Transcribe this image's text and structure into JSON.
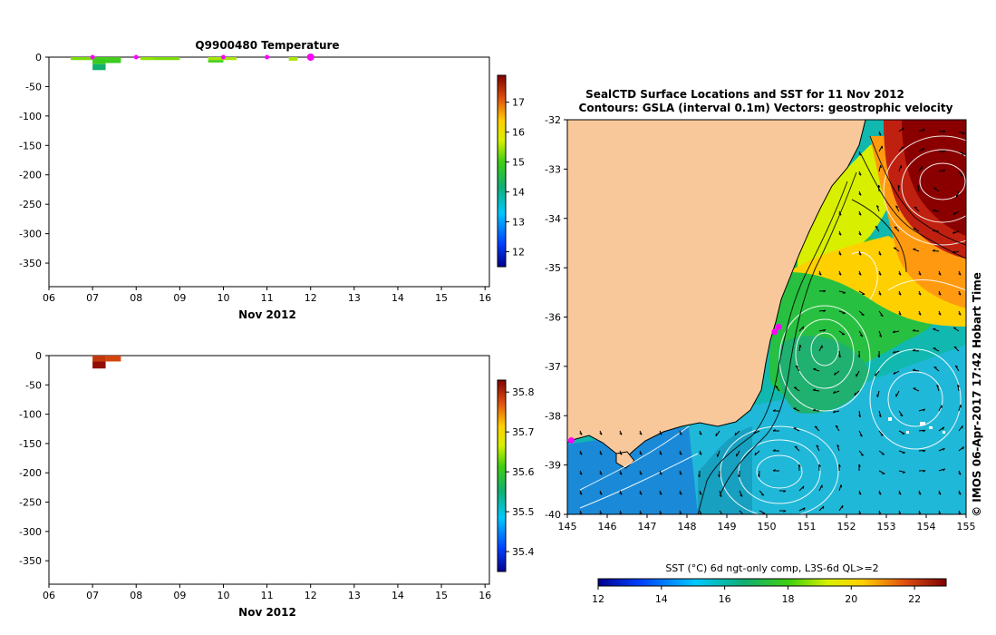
{
  "chart_data": [
    {
      "type": "heatmap",
      "title": "Q9900480  Temperature",
      "xlabel": "Nov 2012",
      "ylabel": "",
      "x_ticks": [
        "06",
        "07",
        "08",
        "09",
        "10",
        "11",
        "12",
        "13",
        "14",
        "15",
        "16"
      ],
      "y_ticks": [
        0,
        -50,
        -100,
        -150,
        -200,
        -250,
        -300,
        -350
      ],
      "xlim": [
        6,
        16.1
      ],
      "ylim": [
        -390,
        0
      ],
      "colorbar": {
        "ticks": [
          12,
          13,
          14,
          15,
          16,
          17
        ],
        "range": [
          11.5,
          17.9
        ]
      },
      "cells": [
        {
          "x0": 6.5,
          "x1": 7.0,
          "y0": 0,
          "y1": -5,
          "value": 15.3
        },
        {
          "x0": 7.0,
          "x1": 7.3,
          "y0": 0,
          "y1": -3,
          "value": 15.0
        },
        {
          "x0": 7.0,
          "x1": 7.3,
          "y0": -3,
          "y1": -12,
          "value": 14.9
        },
        {
          "x0": 7.0,
          "x1": 7.3,
          "y0": -12,
          "y1": -22,
          "value": 14.2
        },
        {
          "x0": 7.3,
          "x1": 7.65,
          "y0": 0,
          "y1": -4,
          "value": 15.0
        },
        {
          "x0": 7.3,
          "x1": 7.65,
          "y0": -4,
          "y1": -10,
          "value": 14.9
        },
        {
          "x0": 8.1,
          "x1": 8.4,
          "y0": 0,
          "y1": -5,
          "value": 15.4
        },
        {
          "x0": 8.4,
          "x1": 9.0,
          "y0": 0,
          "y1": -5,
          "value": 15.3
        },
        {
          "x0": 9.65,
          "x1": 10.3,
          "y0": 0,
          "y1": -5,
          "value": 15.5
        },
        {
          "x0": 9.65,
          "x1": 10.0,
          "y0": -5,
          "y1": -9,
          "value": 15.0
        },
        {
          "x0": 11.5,
          "x1": 11.7,
          "y0": 0,
          "y1": -6,
          "value": 15.5
        }
      ],
      "surface_markers": [
        7.0,
        8.0,
        10.0,
        11.0,
        12.0
      ]
    },
    {
      "type": "heatmap",
      "title": "",
      "xlabel": "Nov 2012",
      "ylabel": "",
      "x_ticks": [
        "06",
        "07",
        "08",
        "09",
        "10",
        "11",
        "12",
        "13",
        "14",
        "15",
        "16"
      ],
      "y_ticks": [
        0,
        -50,
        -100,
        -150,
        -200,
        -250,
        -300,
        -350
      ],
      "xlim": [
        6,
        16.1
      ],
      "ylim": [
        -390,
        0
      ],
      "colorbar": {
        "ticks": [
          35.4,
          35.5,
          35.6,
          35.7,
          35.8
        ],
        "range": [
          35.35,
          35.83
        ]
      },
      "cells": [
        {
          "x0": 7.0,
          "x1": 7.3,
          "y0": 0,
          "y1": -10,
          "value": 35.79
        },
        {
          "x0": 7.0,
          "x1": 7.3,
          "y0": -10,
          "y1": -22,
          "value": 35.82
        },
        {
          "x0": 7.3,
          "x1": 7.65,
          "y0": 0,
          "y1": -10,
          "value": 35.78
        }
      ]
    },
    {
      "type": "heatmap",
      "title": "SealCTD Surface Locations and SST for 11 Nov 2012",
      "subtitle": "Contours: GSLA (interval 0.1m) Vectors: geostrophic velocity",
      "side_label": "© IMOS 06-Apr-2017 17:42 Hobart Time",
      "colorbar_label": "SST (°C) 6d ngt-only comp, L3S-6d QL>=2",
      "x_ticks": [
        145,
        146,
        147,
        148,
        149,
        150,
        151,
        152,
        153,
        154,
        155
      ],
      "y_ticks": [
        -32,
        -33,
        -34,
        -35,
        -36,
        -37,
        -38,
        -39,
        -40
      ],
      "xlim": [
        145,
        155
      ],
      "ylim": [
        -40,
        -32
      ],
      "colorbar": {
        "ticks": [
          12,
          14,
          16,
          18,
          20,
          22
        ],
        "range": [
          12,
          23
        ]
      },
      "seal_locations": [
        [
          150.3,
          -36.2
        ],
        [
          150.2,
          -36.3
        ],
        [
          145.1,
          -38.5
        ]
      ]
    }
  ]
}
